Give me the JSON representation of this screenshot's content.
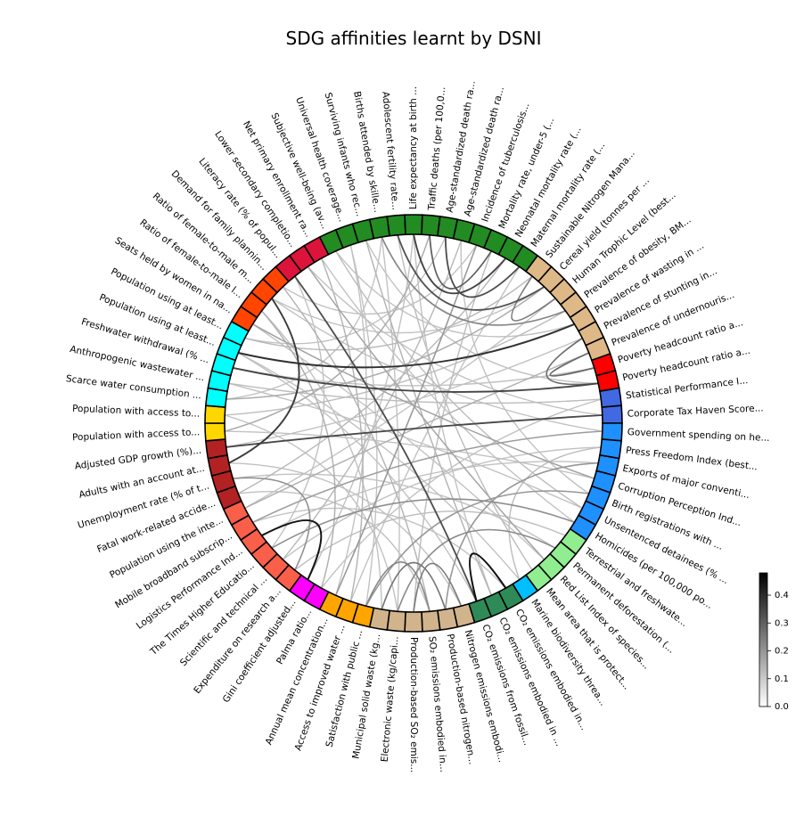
{
  "chart_data": {
    "type": "chord",
    "title": "SDG affinities learnt by DSNI",
    "colorbar": {
      "ticks": [
        "0.0",
        "0.1",
        "0.2",
        "0.3",
        "0.4"
      ],
      "min": 0.0,
      "max": 0.48
    },
    "indicators": [
      {
        "label": "Surviving infants who rec...",
        "color": "#228b22"
      },
      {
        "label": "Births attended by skille...",
        "color": "#228b22"
      },
      {
        "label": "Adolescent fertility rate...",
        "color": "#228b22"
      },
      {
        "label": "Life expectancy at birth ...",
        "color": "#228b22"
      },
      {
        "label": "Traffic deaths (per 100,0...",
        "color": "#228b22"
      },
      {
        "label": "Age-standardized death ra...",
        "color": "#228b22"
      },
      {
        "label": "Age-standardized death ra...",
        "color": "#228b22"
      },
      {
        "label": "Incidence of tuberculosis...",
        "color": "#228b22"
      },
      {
        "label": "Mortality rate, under-5 (...",
        "color": "#228b22"
      },
      {
        "label": "Neonatal mortality rate (...",
        "color": "#228b22"
      },
      {
        "label": "Maternal mortality rate (...",
        "color": "#228b22"
      },
      {
        "label": "Sustainable Nitrogen Mana...",
        "color": "#deb887"
      },
      {
        "label": "Cereal yield (tonnes per ...",
        "color": "#deb887"
      },
      {
        "label": "Human Trophic Level (best...",
        "color": "#deb887"
      },
      {
        "label": "Prevalence of obesity, BM...",
        "color": "#deb887"
      },
      {
        "label": "Prevalence of wasting in ...",
        "color": "#deb887"
      },
      {
        "label": "Prevalence of stunting in...",
        "color": "#deb887"
      },
      {
        "label": "Prevalence of undernouris...",
        "color": "#deb887"
      },
      {
        "label": "Poverty headcount ratio a...",
        "color": "#ff0000"
      },
      {
        "label": "Poverty headcount ratio a...",
        "color": "#ff0000"
      },
      {
        "label": "Statistical Performance I...",
        "color": "#4169e1"
      },
      {
        "label": "Corporate Tax Haven Score...",
        "color": "#4169e1"
      },
      {
        "label": "Government spending on he...",
        "color": "#1e90ff"
      },
      {
        "label": "Press Freedom Index (best...",
        "color": "#1e90ff"
      },
      {
        "label": "Exports of major conventi...",
        "color": "#1e90ff"
      },
      {
        "label": "Corruption Perception Ind...",
        "color": "#1e90ff"
      },
      {
        "label": "Birth registrations with ...",
        "color": "#1e90ff"
      },
      {
        "label": "Unsentenced detainees (% ...",
        "color": "#1e90ff"
      },
      {
        "label": "Homicides (per 100,000 po...",
        "color": "#1e90ff"
      },
      {
        "label": "Terrestrial and freshwate...",
        "color": "#90ee90"
      },
      {
        "label": "Permanent deforestation (...",
        "color": "#90ee90"
      },
      {
        "label": "Red List Index of species...",
        "color": "#90ee90"
      },
      {
        "label": "Mean area that is protect...",
        "color": "#90ee90"
      },
      {
        "label": "Marine biodiversity threa...",
        "color": "#00bfff"
      },
      {
        "label": "CO₂ emissions embodied in...",
        "color": "#2e8b57"
      },
      {
        "label": "CO₂ emissions embodied in ...",
        "color": "#2e8b57"
      },
      {
        "label": "CO₂ emissions from fossil...",
        "color": "#2e8b57"
      },
      {
        "label": "Nitrogen emissions embodi...",
        "color": "#d2b48c"
      },
      {
        "label": "Production-based nitrogen...",
        "color": "#d2b48c"
      },
      {
        "label": "SO₂ emissions embodied in...",
        "color": "#d2b48c"
      },
      {
        "label": "Production-based SO₂ emis...",
        "color": "#d2b48c"
      },
      {
        "label": "Electronic waste (kg/capi...",
        "color": "#d2b48c"
      },
      {
        "label": "Municipal solid waste (kg...",
        "color": "#d2b48c"
      },
      {
        "label": "Satisfaction with public ...",
        "color": "#ffa500"
      },
      {
        "label": "Access to improved water ...",
        "color": "#ffa500"
      },
      {
        "label": "Annual mean concentration...",
        "color": "#ffa500"
      },
      {
        "label": "Palma ratio...",
        "color": "#ff00ff"
      },
      {
        "label": "Gini coefficient adjusted...",
        "color": "#ff00ff"
      },
      {
        "label": "Expenditure on research a...",
        "color": "#fa5f4a"
      },
      {
        "label": "Scientific and technical ...",
        "color": "#fa5f4a"
      },
      {
        "label": "The Times Higher Educatio...",
        "color": "#fa5f4a"
      },
      {
        "label": "Logistics Performance Ind...",
        "color": "#fa5f4a"
      },
      {
        "label": "Mobile broadband subscrip...",
        "color": "#fa5f4a"
      },
      {
        "label": "Population using the inte...",
        "color": "#fa5f4a"
      },
      {
        "label": "Fatal work-related accide...",
        "color": "#b22222"
      },
      {
        "label": "Unemployment rate (% of t...",
        "color": "#b22222"
      },
      {
        "label": "Adults with an account at...",
        "color": "#b22222"
      },
      {
        "label": "Adjusted GDP growth (%)...",
        "color": "#b22222"
      },
      {
        "label": "Population with access to...",
        "color": "#ffd700"
      },
      {
        "label": "Population with access to...",
        "color": "#ffd700"
      },
      {
        "label": "Scarce water consumption ...",
        "color": "#00ffff"
      },
      {
        "label": "Anthropogenic wastewater ...",
        "color": "#00ffff"
      },
      {
        "label": "Freshwater withdrawal (% ...",
        "color": "#00ffff"
      },
      {
        "label": "Population using at least...",
        "color": "#00ffff"
      },
      {
        "label": "Population using at least...",
        "color": "#00ffff"
      },
      {
        "label": "Seats held by women in na...",
        "color": "#ff4500"
      },
      {
        "label": "Ratio of female-to-male l...",
        "color": "#ff4500"
      },
      {
        "label": "Ratio of female-to-male m...",
        "color": "#ff4500"
      },
      {
        "label": "Demand for family plannin...",
        "color": "#ff4500"
      },
      {
        "label": "Literacy rate (% of popul...",
        "color": "#dc143c"
      },
      {
        "label": "Lower secondary completio...",
        "color": "#dc143c"
      },
      {
        "label": "Net primary enrollment ra...",
        "color": "#dc143c"
      },
      {
        "label": "Subjective well-being (av...",
        "color": "#228b22"
      },
      {
        "label": "Universal health coverage...",
        "color": "#228b22"
      }
    ],
    "links": [
      {
        "a": 67,
        "b": 56,
        "w": 0.38
      },
      {
        "a": 69,
        "b": 36,
        "w": 0.34
      },
      {
        "a": 62,
        "b": 19,
        "w": 0.36
      },
      {
        "a": 57,
        "b": 21,
        "w": 0.35
      },
      {
        "a": 63,
        "b": 15,
        "w": 0.4
      },
      {
        "a": 47,
        "b": 51,
        "w": 0.46
      },
      {
        "a": 34,
        "b": 36,
        "w": 0.47
      },
      {
        "a": 3,
        "b": 9,
        "w": 0.36
      },
      {
        "a": 5,
        "b": 10,
        "w": 0.34
      },
      {
        "a": 2,
        "b": 12,
        "w": 0.33
      },
      {
        "a": 4,
        "b": 8,
        "w": 0.3
      },
      {
        "a": 16,
        "b": 19,
        "w": 0.27
      },
      {
        "a": 17,
        "b": 18,
        "w": 0.28
      },
      {
        "a": 13,
        "b": 11,
        "w": 0.24
      },
      {
        "a": 1,
        "b": 14,
        "w": 0.22
      },
      {
        "a": 38,
        "b": 42,
        "w": 0.25
      },
      {
        "a": 39,
        "b": 43,
        "w": 0.22
      },
      {
        "a": 37,
        "b": 40,
        "w": 0.24
      },
      {
        "a": 30,
        "b": 41,
        "w": 0.21
      },
      {
        "a": 48,
        "b": 55,
        "w": 0.2
      },
      {
        "a": 50,
        "b": 28,
        "w": 0.2
      },
      {
        "a": 45,
        "b": 7,
        "w": 0.18
      },
      {
        "a": 22,
        "b": 52,
        "w": 0.17
      },
      {
        "a": 24,
        "b": 38,
        "w": 0.18
      },
      {
        "a": 26,
        "b": 43,
        "w": 0.18
      },
      {
        "a": 65,
        "b": 25,
        "w": 0.16
      },
      {
        "a": 70,
        "b": 31,
        "w": 0.15
      },
      {
        "a": 58,
        "b": 4,
        "w": 0.14
      },
      {
        "a": 60,
        "b": 12,
        "w": 0.14
      },
      {
        "a": 53,
        "b": 17,
        "w": 0.13
      },
      {
        "a": 66,
        "b": 46,
        "w": 0.13
      },
      {
        "a": 68,
        "b": 39,
        "w": 0.12
      },
      {
        "a": 71,
        "b": 44,
        "w": 0.12
      },
      {
        "a": 0,
        "b": 35,
        "w": 0.12
      },
      {
        "a": 6,
        "b": 49,
        "w": 0.11
      },
      {
        "a": 9,
        "b": 54,
        "w": 0.11
      },
      {
        "a": 11,
        "b": 64,
        "w": 0.11
      },
      {
        "a": 14,
        "b": 59,
        "w": 0.1
      },
      {
        "a": 20,
        "b": 61,
        "w": 0.1
      },
      {
        "a": 23,
        "b": 33,
        "w": 0.1
      },
      {
        "a": 27,
        "b": 72,
        "w": 0.1
      },
      {
        "a": 29,
        "b": 48,
        "w": 0.1
      },
      {
        "a": 32,
        "b": 2,
        "w": 0.1
      },
      {
        "a": 40,
        "b": 8,
        "w": 0.1
      },
      {
        "a": 42,
        "b": 66,
        "w": 0.09
      },
      {
        "a": 44,
        "b": 10,
        "w": 0.09
      },
      {
        "a": 46,
        "b": 20,
        "w": 0.09
      },
      {
        "a": 51,
        "b": 24,
        "w": 0.09
      },
      {
        "a": 55,
        "b": 30,
        "w": 0.09
      },
      {
        "a": 56,
        "b": 37,
        "w": 0.09
      },
      {
        "a": 59,
        "b": 41,
        "w": 0.09
      },
      {
        "a": 61,
        "b": 27,
        "w": 0.09
      },
      {
        "a": 63,
        "b": 33,
        "w": 0.09
      },
      {
        "a": 64,
        "b": 5,
        "w": 0.09
      },
      {
        "a": 67,
        "b": 22,
        "w": 0.09
      },
      {
        "a": 69,
        "b": 50,
        "w": 0.09
      },
      {
        "a": 72,
        "b": 15,
        "w": 0.09
      },
      {
        "a": 73,
        "b": 45,
        "w": 0.09
      },
      {
        "a": 1,
        "b": 60,
        "w": 0.09
      },
      {
        "a": 3,
        "b": 47,
        "w": 0.09
      },
      {
        "a": 7,
        "b": 68,
        "w": 0.09
      },
      {
        "a": 13,
        "b": 53,
        "w": 0.09
      },
      {
        "a": 16,
        "b": 57,
        "w": 0.09
      },
      {
        "a": 18,
        "b": 62,
        "w": 0.09
      },
      {
        "a": 21,
        "b": 70,
        "w": 0.09
      },
      {
        "a": 25,
        "b": 58,
        "w": 0.09
      },
      {
        "a": 26,
        "b": 6,
        "w": 0.09
      },
      {
        "a": 28,
        "b": 71,
        "w": 0.09
      },
      {
        "a": 31,
        "b": 65,
        "w": 0.09
      },
      {
        "a": 34,
        "b": 52,
        "w": 0.09
      },
      {
        "a": 35,
        "b": 3,
        "w": 0.09
      },
      {
        "a": 36,
        "b": 63,
        "w": 0.09
      },
      {
        "a": 39,
        "b": 54,
        "w": 0.09
      },
      {
        "a": 41,
        "b": 1,
        "w": 0.09
      },
      {
        "a": 43,
        "b": 73,
        "w": 0.09
      },
      {
        "a": 49,
        "b": 23,
        "w": 0.09
      },
      {
        "a": 19,
        "b": 0,
        "w": 0.09
      },
      {
        "a": 12,
        "b": 67,
        "w": 0.09
      }
    ]
  }
}
